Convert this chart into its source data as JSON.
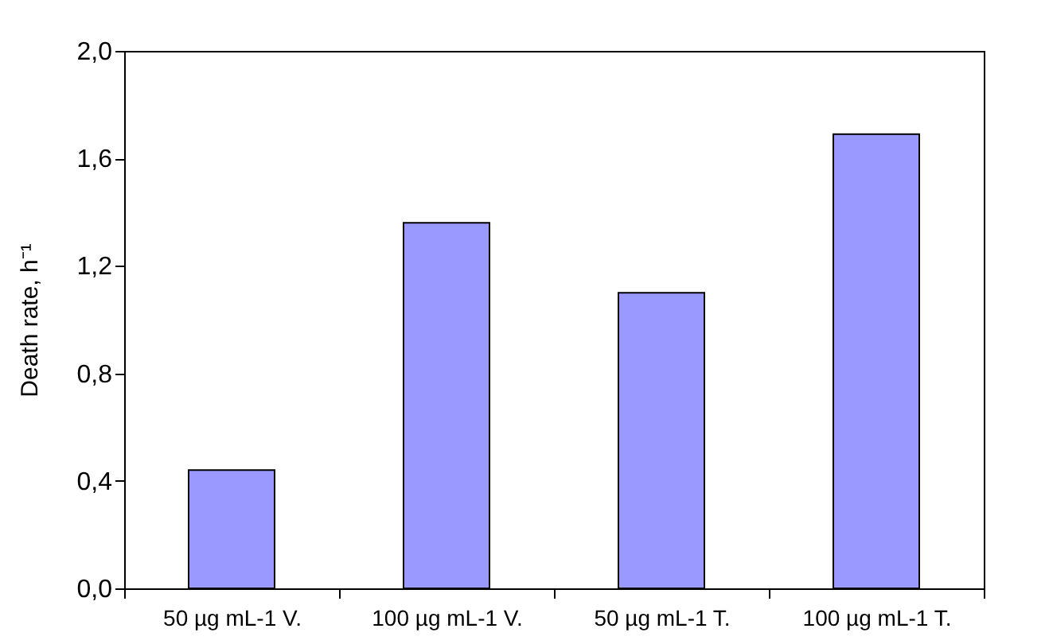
{
  "chart_data": {
    "type": "bar",
    "ylabel": "Death rate, h⁻¹",
    "categories": [
      "50 µg mL-1 V.",
      "100 µg mL-1 V.",
      "50 µg mL-1 T.",
      "100 µg mL-1 T."
    ],
    "series": [
      {
        "color": "#9999ff",
        "values": [
          0.44,
          1.36,
          1.1,
          1.69
        ]
      }
    ],
    "ylim": [
      0,
      2
    ],
    "yticks": [
      {
        "value": 0,
        "label": "0,0"
      },
      {
        "value": 0.4,
        "label": "0,4"
      },
      {
        "value": 0.8,
        "label": "0,8"
      },
      {
        "value": 1.2,
        "label": "1,2"
      },
      {
        "value": 1.6,
        "label": "1,6"
      },
      {
        "value": 2,
        "label": "2,0"
      }
    ],
    "grid": false
  }
}
